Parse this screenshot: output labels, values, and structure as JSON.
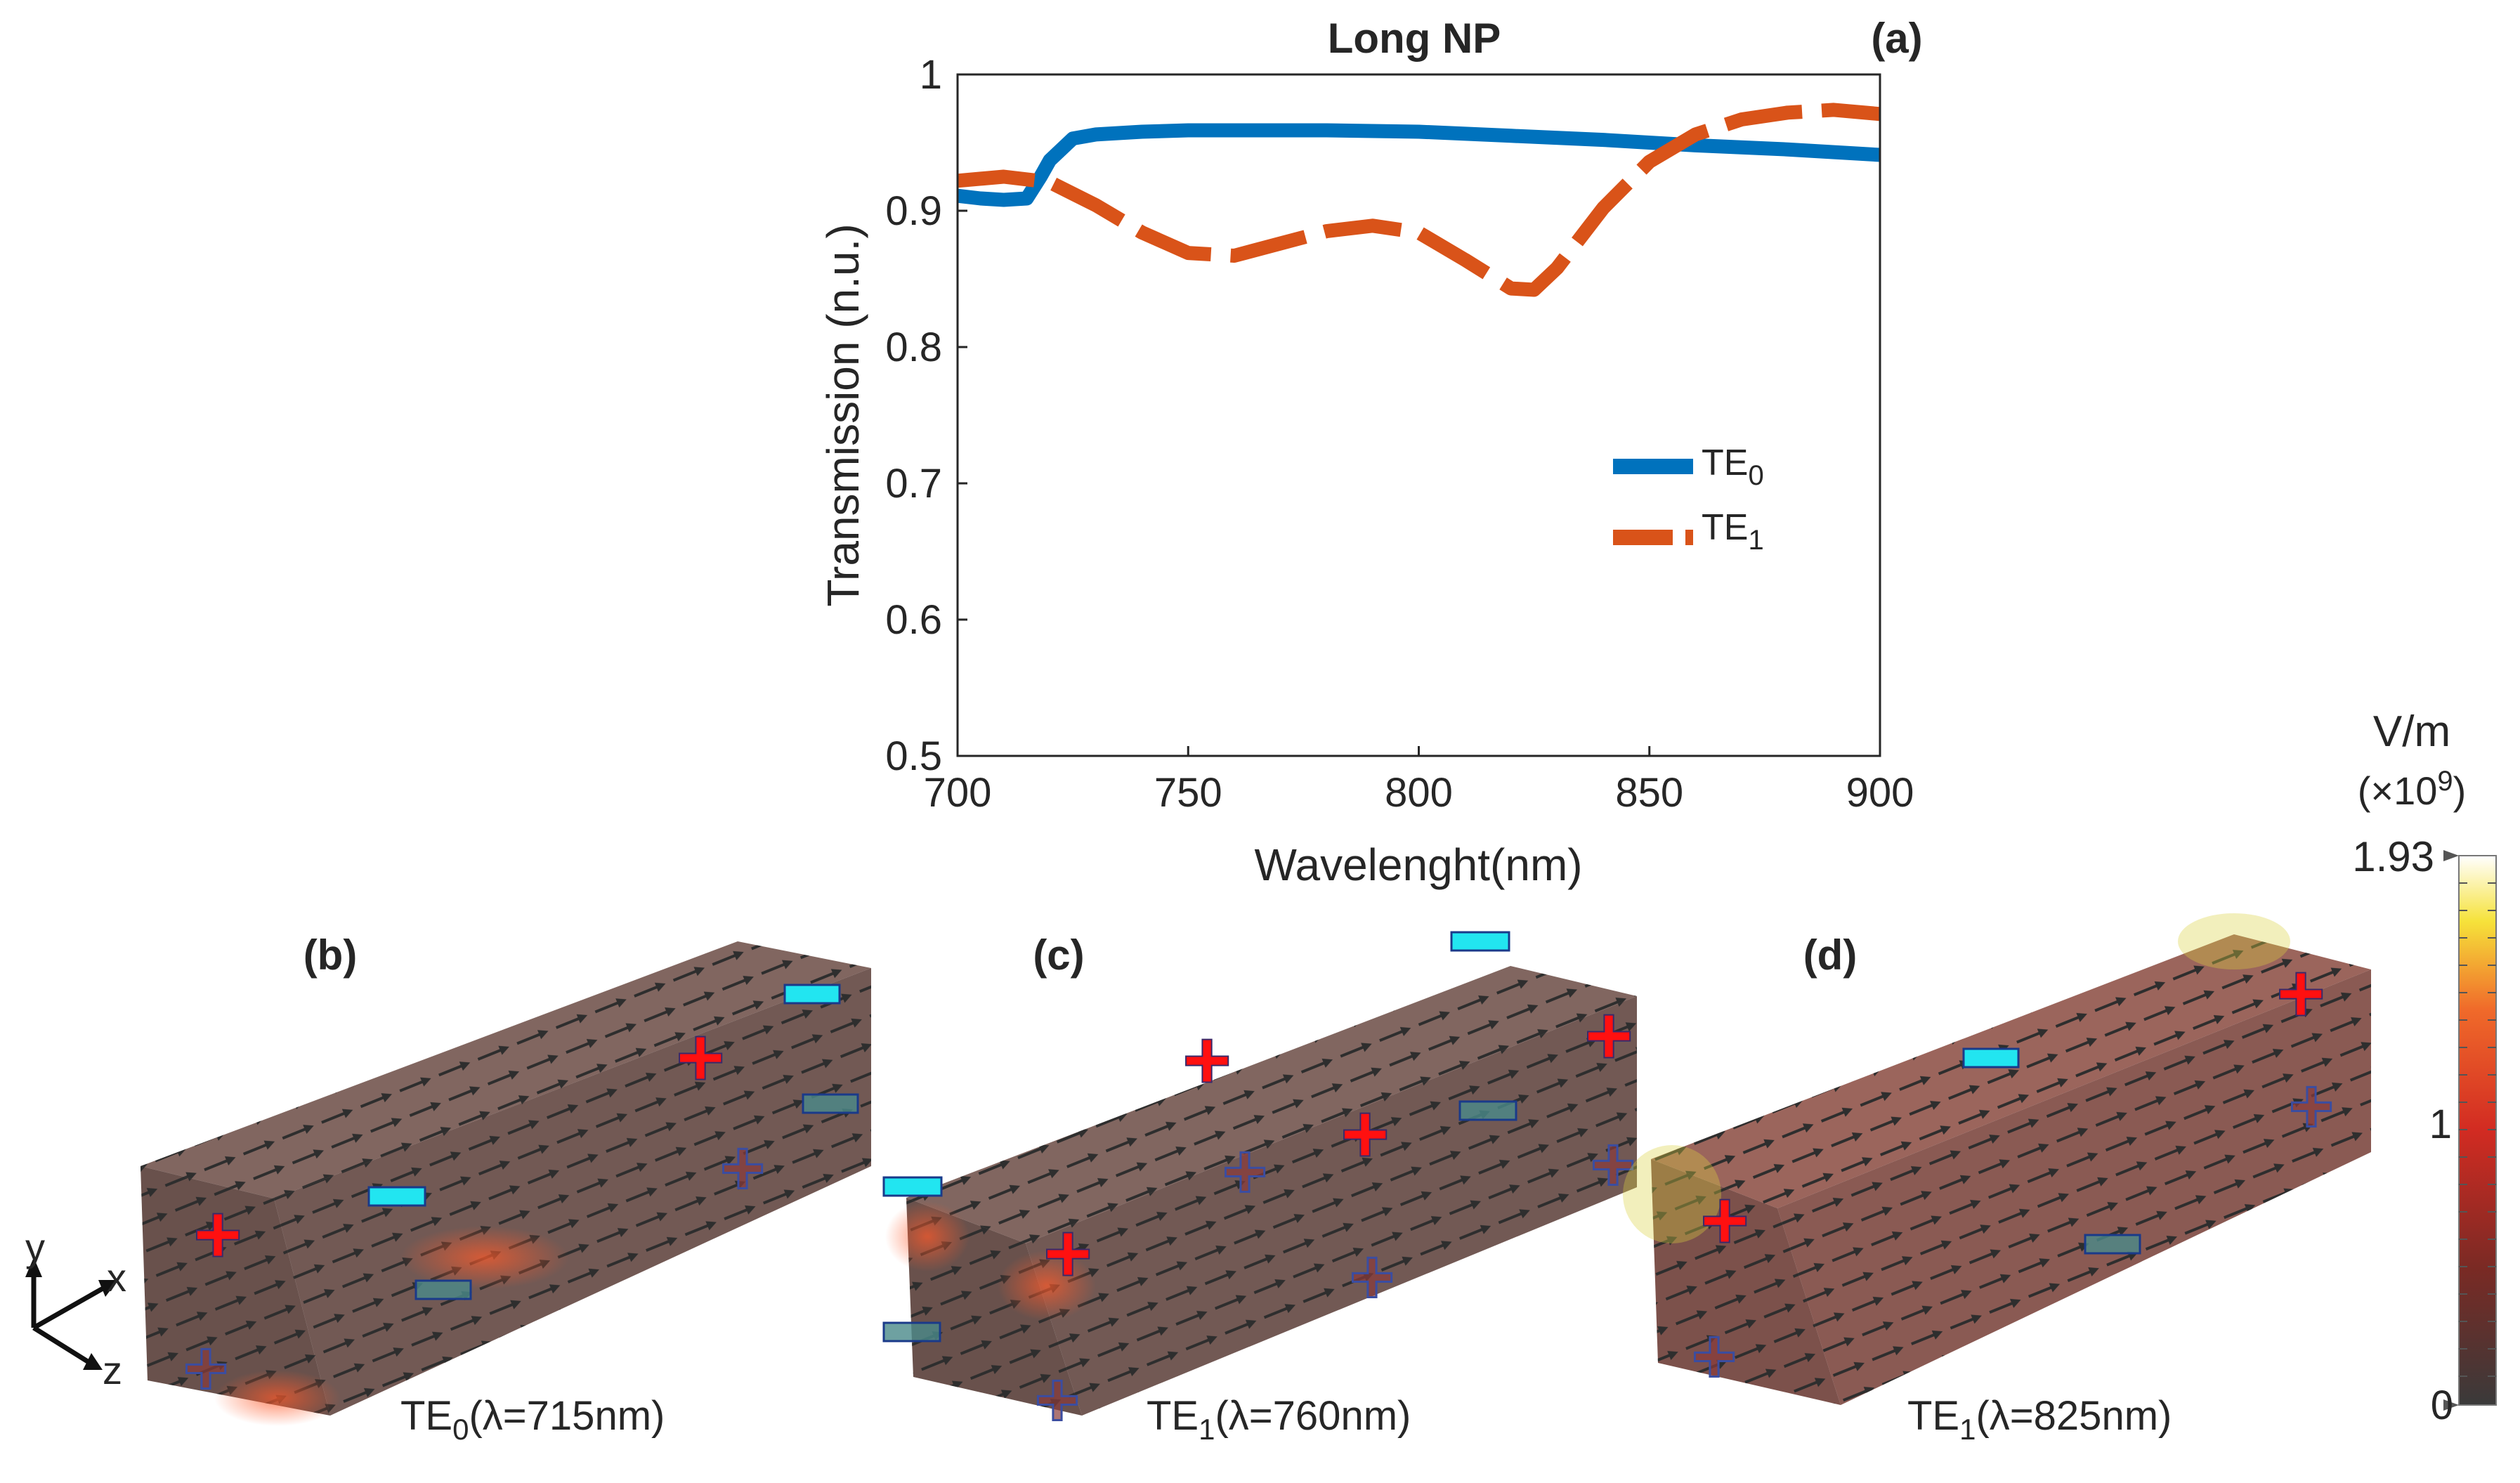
{
  "chart_data": {
    "type": "line",
    "title": "Long NP",
    "panel_label": "(a)",
    "xlabel": "Wavelenght(nm)",
    "ylabel": "Transmission (n.u.)",
    "xlim": [
      700,
      900
    ],
    "ylim": [
      0.5,
      1
    ],
    "xticks": [
      700,
      750,
      800,
      850,
      900
    ],
    "xtick_labels": [
      "700",
      "750",
      "800",
      "850",
      "900"
    ],
    "yticks": [
      0.5,
      0.6,
      0.7,
      0.8,
      0.9,
      1
    ],
    "ytick_labels": [
      "0.5",
      "0.6",
      "0.7",
      "0.8",
      "0.9",
      "1"
    ],
    "grid": false,
    "legend_position": "center-right",
    "series": [
      {
        "name": "TE0",
        "legend_base": "TE",
        "legend_sub": "0",
        "color": "#0072BD",
        "style": "solid",
        "x": [
          700,
          705,
          710,
          715,
          718,
          720,
          725,
          730,
          740,
          750,
          760,
          780,
          800,
          820,
          840,
          860,
          880,
          900
        ],
        "y": [
          0.911,
          0.909,
          0.908,
          0.909,
          0.925,
          0.937,
          0.953,
          0.956,
          0.958,
          0.959,
          0.959,
          0.959,
          0.958,
          0.955,
          0.952,
          0.948,
          0.945,
          0.941
        ]
      },
      {
        "name": "TE1",
        "legend_base": "TE",
        "legend_sub": "1",
        "color": "#D95319",
        "style": "dashed",
        "x": [
          700,
          710,
          720,
          730,
          740,
          750,
          760,
          770,
          780,
          790,
          800,
          810,
          820,
          825,
          830,
          840,
          850,
          860,
          870,
          880,
          890,
          900
        ],
        "y": [
          0.922,
          0.925,
          0.921,
          0.904,
          0.884,
          0.869,
          0.867,
          0.876,
          0.885,
          0.889,
          0.884,
          0.864,
          0.843,
          0.842,
          0.858,
          0.902,
          0.936,
          0.956,
          0.967,
          0.972,
          0.974,
          0.971
        ]
      }
    ]
  },
  "panels": [
    {
      "label": "(b)",
      "caption_base": "TE",
      "caption_sub": "0",
      "caption_rest": "(λ=715nm)"
    },
    {
      "label": "(c)",
      "caption_base": "TE",
      "caption_sub": "1",
      "caption_rest": "(λ=760nm)"
    },
    {
      "label": "(d)",
      "caption_base": "TE",
      "caption_sub": "1",
      "caption_rest": "(λ=825nm)"
    }
  ],
  "axes_triad": {
    "y": "y",
    "x": "x",
    "z": "z"
  },
  "colorbar": {
    "unit": "V/m",
    "scale_base": "(×10",
    "scale_exp": "9",
    "scale_close": ")",
    "max_label": "1.93",
    "mid_label": "1",
    "min_label": "0",
    "max": 1.93,
    "mid": 1,
    "min": 0
  },
  "colors": {
    "te0": "#0072BD",
    "te1": "#D95319",
    "plus": "#FF1010",
    "minus": "#22E5F0",
    "np_fill": "#6B4A42"
  }
}
